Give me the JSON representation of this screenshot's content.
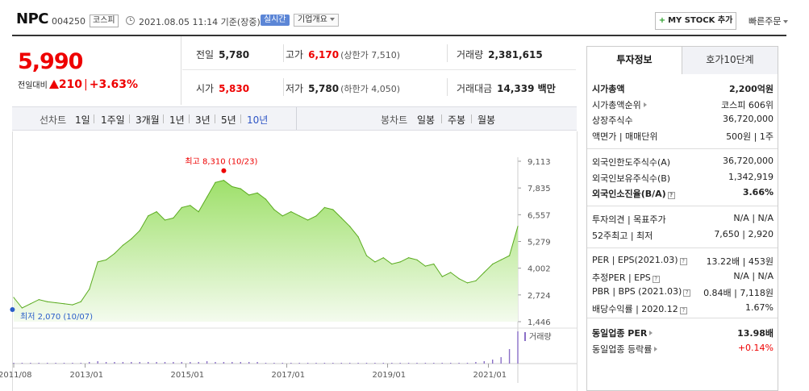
{
  "header": {
    "name": "NPC",
    "code": "004250",
    "market": "코스피",
    "timestamp": "2021.08.05 11:14 기준(장중)",
    "realtime_label": "실시간",
    "company_info_label": "기업개요",
    "mystock_label": "MY STOCK 추가",
    "quick_order_label": "빠른주문"
  },
  "price": {
    "current": "5,990",
    "change_label": "전일대비",
    "change_value": "210",
    "change_sep": "|",
    "change_pct": "+3.63%"
  },
  "quote": {
    "prev_close_label": "전일",
    "prev_close": "5,780",
    "high_label": "고가",
    "high": "6,170",
    "upper_limit": "(상한가 7,510)",
    "volume_label": "거래량",
    "volume": "2,381,615",
    "open_label": "시가",
    "open": "5,830",
    "low_label": "저가",
    "low": "5,780",
    "lower_limit": "(하한가 4,050)",
    "amount_label": "거래대금",
    "amount": "14,339 백만"
  },
  "toolbar": {
    "line_chart_label": "선차트",
    "periods": [
      "1일",
      "1주일",
      "3개월",
      "1년",
      "3년",
      "5년",
      "10년"
    ],
    "active_period": "10년",
    "candle_chart_label": "봉차트",
    "candles": [
      "일봉",
      "주봉",
      "월봉"
    ]
  },
  "chart_data": {
    "type": "area",
    "yticks": [
      "9,113",
      "7,835",
      "6,557",
      "5,279",
      "4,002",
      "2,724",
      "1,446"
    ],
    "ylim": [
      1446,
      9113
    ],
    "xticks": [
      "2011/08",
      "2013/01",
      "2015/01",
      "2017/01",
      "2019/01",
      "2021/01"
    ],
    "max_label": "최고 8,310 (10/23)",
    "min_label": "최저 2,070 (10/07)",
    "volume_label": "거래량",
    "x": [
      "2011-08",
      "2011-10",
      "2011-12",
      "2012-02",
      "2012-04",
      "2012-06",
      "2012-08",
      "2012-10",
      "2012-12",
      "2013-02",
      "2013-04",
      "2013-06",
      "2013-08",
      "2013-10",
      "2013-12",
      "2014-02",
      "2014-04",
      "2014-06",
      "2014-08",
      "2014-10",
      "2014-12",
      "2015-02",
      "2015-04",
      "2015-06",
      "2015-08",
      "2015-10",
      "2015-12",
      "2016-02",
      "2016-04",
      "2016-06",
      "2016-08",
      "2016-10",
      "2016-12",
      "2017-02",
      "2017-04",
      "2017-06",
      "2017-08",
      "2017-10",
      "2017-12",
      "2018-02",
      "2018-04",
      "2018-06",
      "2018-08",
      "2018-10",
      "2018-12",
      "2019-02",
      "2019-04",
      "2019-06",
      "2019-08",
      "2019-10",
      "2019-12",
      "2020-02",
      "2020-04",
      "2020-06",
      "2020-08",
      "2020-10",
      "2020-12",
      "2021-02",
      "2021-04",
      "2021-06",
      "2021-08"
    ],
    "values": [
      2600,
      2100,
      2300,
      2500,
      2400,
      2350,
      2300,
      2250,
      2400,
      3000,
      4300,
      4400,
      4700,
      5100,
      5400,
      5800,
      6500,
      6700,
      6300,
      6400,
      6900,
      7000,
      6700,
      7400,
      8100,
      8200,
      7900,
      7800,
      7500,
      7600,
      7300,
      6800,
      6500,
      6700,
      6500,
      6300,
      6500,
      6900,
      6800,
      6400,
      6000,
      5500,
      4600,
      4300,
      4500,
      4200,
      4300,
      4500,
      4400,
      4100,
      4200,
      3600,
      3800,
      3500,
      3300,
      3400,
      3800,
      4200,
      4400,
      4600,
      6000
    ],
    "volume": [
      1,
      1,
      1,
      1,
      1,
      1,
      1,
      1,
      1,
      2,
      3,
      2,
      2,
      2,
      2,
      2,
      2,
      2,
      2,
      2,
      2,
      2,
      2,
      3,
      2,
      2,
      2,
      2,
      2,
      2,
      1,
      1,
      1,
      1,
      1,
      1,
      1,
      1,
      1,
      1,
      1,
      1,
      1,
      1,
      1,
      1,
      1,
      1,
      1,
      1,
      1,
      1,
      1,
      1,
      1,
      2,
      3,
      5,
      8,
      18,
      40
    ]
  },
  "invest_info": {
    "tab_active": "투자정보",
    "tab_inactive": "호가10단계",
    "rows1": [
      {
        "label": "시가총액",
        "value": "2,200억원",
        "bold": true
      },
      {
        "label": "시가총액순위",
        "value": "코스피 606위",
        "arrow": true
      },
      {
        "label": "상장주식수",
        "value": "36,720,000"
      },
      {
        "label": "액면가 | 매매단위",
        "value": "500원 | 1주"
      }
    ],
    "rows2": [
      {
        "label": "외국인한도주식수(A)",
        "value": "36,720,000"
      },
      {
        "label": "외국인보유주식수(B)",
        "value": "1,342,919"
      },
      {
        "label": "외국인소진율(B/A)",
        "value": "3.66%",
        "bold": true,
        "help": true
      }
    ],
    "rows3": [
      {
        "label": "투자의견 | 목표주가",
        "value": "N/A | N/A"
      },
      {
        "label": "52주최고 | 최저",
        "value": "7,650 | 2,920"
      }
    ],
    "rows4": [
      {
        "label": "PER | EPS(2021.03)",
        "value": "13.22배 | 453원",
        "help": true
      },
      {
        "label": "추정PER | EPS",
        "value": "N/A | N/A",
        "help": true
      },
      {
        "label": "PBR | BPS (2021.03)",
        "value": "0.84배 | 7,118원",
        "help": true
      },
      {
        "label": "배당수익률 | 2020.12",
        "value": "1.67%",
        "help": true
      }
    ],
    "rows5": [
      {
        "label": "동일업종 PER",
        "value": "13.98배",
        "bold": true,
        "arrow": true
      },
      {
        "label": "동일업종 등락률",
        "value": "+0.14%",
        "red": true,
        "arrow": true
      }
    ]
  },
  "colors": {
    "up": "#e00000",
    "area_fill_top": "#9ee06a",
    "area_line": "#5aab1f",
    "accent_blue": "#2e55c5"
  }
}
